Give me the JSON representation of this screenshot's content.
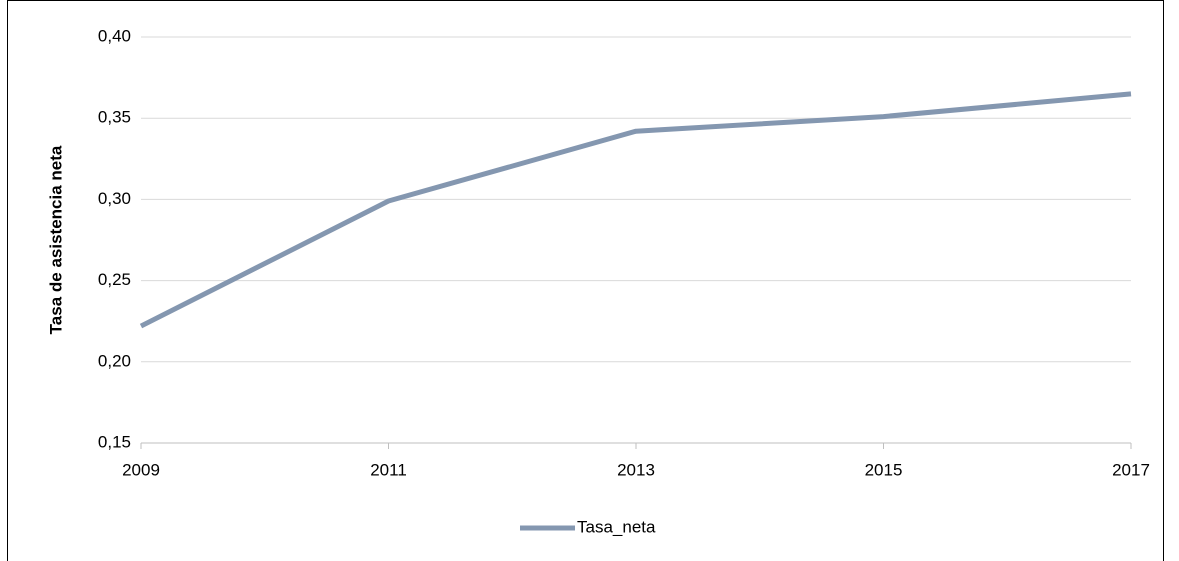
{
  "chart_data": {
    "type": "line",
    "y_label": "Tasa de asistencia neta",
    "x": [
      2009,
      2011,
      2013,
      2015,
      2017
    ],
    "series": [
      {
        "name": "Tasa_neta",
        "color": "#8497b0",
        "values": [
          0.222,
          0.299,
          0.342,
          0.351,
          0.365
        ]
      }
    ],
    "xlim": [
      2009,
      2017
    ],
    "xticks": [
      2009,
      2011,
      2013,
      2015,
      2017
    ],
    "ylim": [
      0.15,
      0.4
    ],
    "yticks": [
      {
        "value": 0.15,
        "label": "0,15"
      },
      {
        "value": 0.2,
        "label": "0,20"
      },
      {
        "value": 0.25,
        "label": "0,25"
      },
      {
        "value": 0.3,
        "label": "0,30"
      },
      {
        "value": 0.35,
        "label": "0,35"
      },
      {
        "value": 0.4,
        "label": "0,40"
      }
    ],
    "grid": true,
    "legend": "bottom"
  }
}
